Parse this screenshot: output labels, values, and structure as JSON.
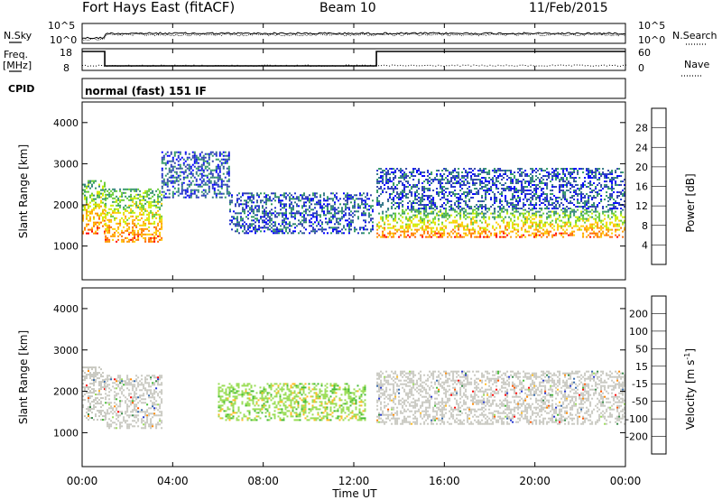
{
  "header": {
    "station": "Fort Hays East (fitACF)",
    "beam": "Beam 10",
    "date": "11/Feb/2015"
  },
  "noise_panel": {
    "left_label": "N.Sky",
    "right_label": "N.Search",
    "left_ticks": [
      "10^5",
      "10^0"
    ],
    "right_ticks": [
      "10^5",
      "10^0"
    ]
  },
  "freq_panel": {
    "left_label_1": "Freq.",
    "left_label_2": "[MHz]",
    "right_label": "Nave",
    "left_ticks": [
      "18",
      "8"
    ],
    "right_ticks": [
      "60",
      "0"
    ]
  },
  "cpid_panel": {
    "label": "CPID",
    "program": "normal (fast) 151 IF"
  },
  "x_axis": {
    "title": "Time UT",
    "ticks": [
      "00:00",
      "04:00",
      "08:00",
      "12:00",
      "16:00",
      "20:00",
      "00:00"
    ]
  },
  "chart_data": [
    {
      "type": "heatmap",
      "title": "Power",
      "ylabel": "Slant Range [km]",
      "xlabel": "Time UT",
      "xlim_hours": [
        0,
        24
      ],
      "ylim": [
        180,
        4500
      ],
      "yticks": [
        1000,
        2000,
        3000,
        4000
      ],
      "colorbar": {
        "label": "Power [dB]",
        "ticks": [
          "28",
          "24",
          "20",
          "16",
          "12",
          "8",
          "4"
        ],
        "colors": [
          "#ff0000",
          "#ff6600",
          "#ff9900",
          "#ffcc00",
          "#ccee00",
          "#66cc33",
          "#339966",
          "#337788",
          "#3344aa",
          "#2233cc",
          "#0000ff"
        ]
      },
      "regions": [
        {
          "t_start": 0.0,
          "t_end": 1.0,
          "r_low": 1300,
          "r_high": 2600,
          "level": "high"
        },
        {
          "t_start": 1.0,
          "t_end": 3.5,
          "r_low": 1100,
          "r_high": 2400,
          "level": "high"
        },
        {
          "t_start": 3.5,
          "t_end": 6.5,
          "r_low": 2200,
          "r_high": 3300,
          "level": "low"
        },
        {
          "t_start": 6.5,
          "t_end": 12.8,
          "r_low": 1300,
          "r_high": 2300,
          "level": "low"
        },
        {
          "t_start": 13.0,
          "t_end": 24.0,
          "r_low": 1200,
          "r_high": 1900,
          "level": "high"
        },
        {
          "t_start": 13.0,
          "t_end": 24.0,
          "r_low": 1900,
          "r_high": 2900,
          "level": "low"
        }
      ]
    },
    {
      "type": "heatmap",
      "title": "Velocity",
      "ylabel": "Slant Range [km]",
      "xlabel": "Time UT",
      "xlim_hours": [
        0,
        24
      ],
      "ylim": [
        180,
        4500
      ],
      "yticks": [
        1000,
        2000,
        3000,
        4000
      ],
      "colorbar": {
        "label": "Velocity [m s^-1]",
        "ticks": [
          "200",
          "100",
          "50",
          "15",
          "-15",
          "-50",
          "-100",
          "-200"
        ],
        "colors": [
          "#2233cc",
          "#3366aa",
          "#338844",
          "#44bb33",
          "#99dd55",
          "#c8c8c0",
          "#ffbb22",
          "#ff8800",
          "#ff5500",
          "#ff0000"
        ]
      },
      "regions": [
        {
          "t_start": 0.0,
          "t_end": 1.0,
          "r_low": 1300,
          "r_high": 2600,
          "level": "ground-scatter"
        },
        {
          "t_start": 1.0,
          "t_end": 3.5,
          "r_low": 1100,
          "r_high": 2400,
          "level": "ground-scatter"
        },
        {
          "t_start": 6.0,
          "t_end": 12.5,
          "r_low": 1300,
          "r_high": 2200,
          "level": "positive"
        },
        {
          "t_start": 13.0,
          "t_end": 24.0,
          "r_low": 1200,
          "r_high": 2500,
          "level": "ground-scatter"
        }
      ]
    }
  ]
}
